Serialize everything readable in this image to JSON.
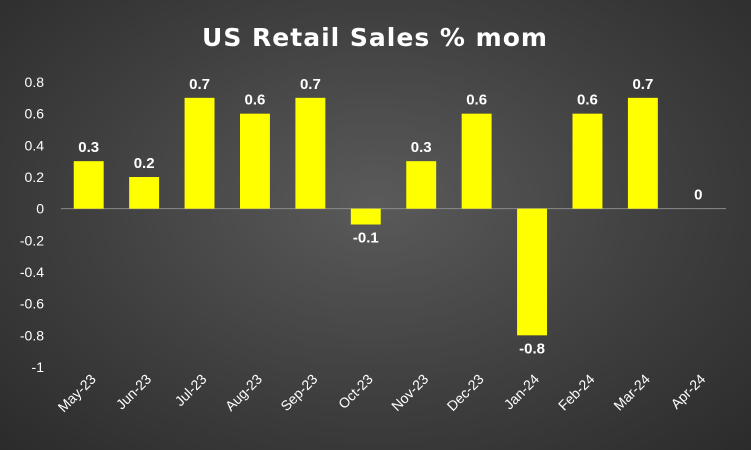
{
  "chart_data": {
    "type": "bar",
    "title": "US Retail Sales % mom",
    "xlabel": "",
    "ylabel": "",
    "categories": [
      "May-23",
      "Jun-23",
      "Jul-23",
      "Aug-23",
      "Sep-23",
      "Oct-23",
      "Nov-23",
      "Dec-23",
      "Jan-24",
      "Feb-24",
      "Mar-24",
      "Apr-24"
    ],
    "values": [
      0.3,
      0.2,
      0.7,
      0.6,
      0.7,
      -0.1,
      0.3,
      0.6,
      -0.8,
      0.6,
      0.7,
      0
    ],
    "data_labels": [
      "0.3",
      "0.2",
      "0.7",
      "0.6",
      "0.7",
      "-0.1",
      "0.3",
      "0.6",
      "-0.8",
      "0.6",
      "0.7",
      "0"
    ],
    "y_ticks": [
      "0.8",
      "0.6",
      "0.4",
      "0.2",
      "0",
      "-0.2",
      "-0.4",
      "-0.6",
      "-0.8",
      "-1"
    ],
    "ylim": [
      -1,
      0.8
    ],
    "grid": false,
    "legend": "none",
    "bar_color": "#FFFF00",
    "background_color": "#404040",
    "text_color": "#FFFFFF"
  }
}
